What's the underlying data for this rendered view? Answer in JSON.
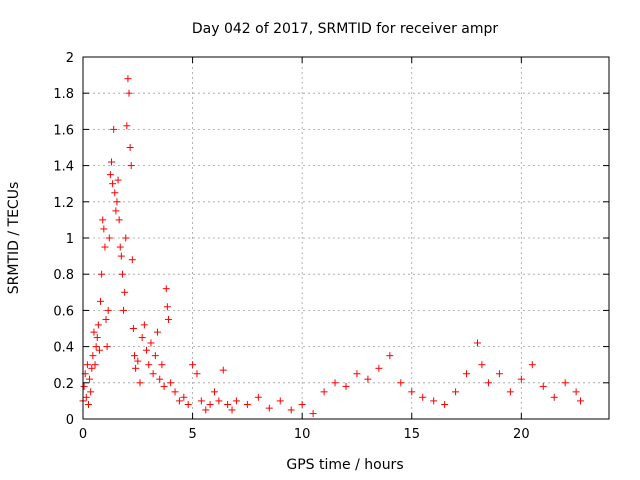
{
  "chart_data": {
    "type": "scatter",
    "title": "Day 042 of 2017, SRMTID for receiver ampr",
    "xlabel": "GPS time / hours",
    "ylabel": "SRMTID / TECUs",
    "xlim": [
      0,
      24
    ],
    "ylim": [
      0,
      2
    ],
    "xticks": [
      "0",
      "5",
      "10",
      "15",
      "20"
    ],
    "yticks": [
      "0",
      "0.2",
      "0.4",
      "0.6",
      "0.8",
      "1",
      "1.2",
      "1.4",
      "1.6",
      "1.8",
      "2"
    ],
    "grid": true,
    "marker": "+",
    "color": "#ff0000",
    "series": [
      {
        "name": "SRMTID",
        "points": [
          [
            0.0,
            0.1
          ],
          [
            0.05,
            0.18
          ],
          [
            0.1,
            0.25
          ],
          [
            0.15,
            0.12
          ],
          [
            0.2,
            0.3
          ],
          [
            0.25,
            0.08
          ],
          [
            0.3,
            0.22
          ],
          [
            0.35,
            0.15
          ],
          [
            0.4,
            0.28
          ],
          [
            0.45,
            0.35
          ],
          [
            0.5,
            0.48
          ],
          [
            0.55,
            0.3
          ],
          [
            0.6,
            0.4
          ],
          [
            0.65,
            0.45
          ],
          [
            0.7,
            0.52
          ],
          [
            0.75,
            0.38
          ],
          [
            0.8,
            0.65
          ],
          [
            0.85,
            0.8
          ],
          [
            0.9,
            1.1
          ],
          [
            0.95,
            1.05
          ],
          [
            1.0,
            0.95
          ],
          [
            1.05,
            0.55
          ],
          [
            1.1,
            0.4
          ],
          [
            1.15,
            0.6
          ],
          [
            1.2,
            1.0
          ],
          [
            1.25,
            1.35
          ],
          [
            1.3,
            1.42
          ],
          [
            1.35,
            1.3
          ],
          [
            1.4,
            1.6
          ],
          [
            1.45,
            1.25
          ],
          [
            1.5,
            1.15
          ],
          [
            1.55,
            1.2
          ],
          [
            1.6,
            1.32
          ],
          [
            1.65,
            1.1
          ],
          [
            1.7,
            0.95
          ],
          [
            1.75,
            0.9
          ],
          [
            1.8,
            0.8
          ],
          [
            1.85,
            0.6
          ],
          [
            1.9,
            0.7
          ],
          [
            1.95,
            1.0
          ],
          [
            2.0,
            1.62
          ],
          [
            2.05,
            1.88
          ],
          [
            2.1,
            1.8
          ],
          [
            2.15,
            1.5
          ],
          [
            2.2,
            1.4
          ],
          [
            2.25,
            0.88
          ],
          [
            2.3,
            0.5
          ],
          [
            2.35,
            0.35
          ],
          [
            2.4,
            0.28
          ],
          [
            2.5,
            0.32
          ],
          [
            2.6,
            0.2
          ],
          [
            2.7,
            0.45
          ],
          [
            2.8,
            0.52
          ],
          [
            2.9,
            0.38
          ],
          [
            3.0,
            0.3
          ],
          [
            3.1,
            0.42
          ],
          [
            3.2,
            0.25
          ],
          [
            3.3,
            0.35
          ],
          [
            3.4,
            0.48
          ],
          [
            3.5,
            0.22
          ],
          [
            3.6,
            0.3
          ],
          [
            3.7,
            0.18
          ],
          [
            3.8,
            0.72
          ],
          [
            3.85,
            0.62
          ],
          [
            3.9,
            0.55
          ],
          [
            4.0,
            0.2
          ],
          [
            4.2,
            0.15
          ],
          [
            4.4,
            0.1
          ],
          [
            4.6,
            0.12
          ],
          [
            4.8,
            0.08
          ],
          [
            5.0,
            0.3
          ],
          [
            5.2,
            0.25
          ],
          [
            5.4,
            0.1
          ],
          [
            5.6,
            0.05
          ],
          [
            5.8,
            0.08
          ],
          [
            6.0,
            0.15
          ],
          [
            6.2,
            0.1
          ],
          [
            6.4,
            0.27
          ],
          [
            6.6,
            0.08
          ],
          [
            6.8,
            0.05
          ],
          [
            7.0,
            0.1
          ],
          [
            7.5,
            0.08
          ],
          [
            8.0,
            0.12
          ],
          [
            8.5,
            0.06
          ],
          [
            9.0,
            0.1
          ],
          [
            9.5,
            0.05
          ],
          [
            10.0,
            0.08
          ],
          [
            10.5,
            0.03
          ],
          [
            11.0,
            0.15
          ],
          [
            11.5,
            0.2
          ],
          [
            12.0,
            0.18
          ],
          [
            12.5,
            0.25
          ],
          [
            13.0,
            0.22
          ],
          [
            13.5,
            0.28
          ],
          [
            14.0,
            0.35
          ],
          [
            14.5,
            0.2
          ],
          [
            15.0,
            0.15
          ],
          [
            15.5,
            0.12
          ],
          [
            16.0,
            0.1
          ],
          [
            16.5,
            0.08
          ],
          [
            17.0,
            0.15
          ],
          [
            17.5,
            0.25
          ],
          [
            18.0,
            0.42
          ],
          [
            18.2,
            0.3
          ],
          [
            18.5,
            0.2
          ],
          [
            19.0,
            0.25
          ],
          [
            19.5,
            0.15
          ],
          [
            20.0,
            0.22
          ],
          [
            20.5,
            0.3
          ],
          [
            21.0,
            0.18
          ],
          [
            21.5,
            0.12
          ],
          [
            22.0,
            0.2
          ],
          [
            22.5,
            0.15
          ],
          [
            22.7,
            0.1
          ]
        ]
      }
    ]
  }
}
